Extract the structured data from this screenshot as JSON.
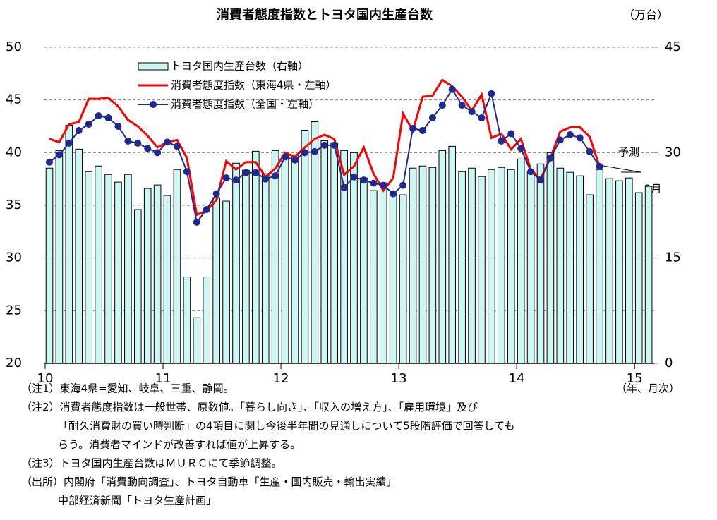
{
  "chart_data": {
    "type": "bar_line",
    "title": "消費者態度指数とトヨタ国内生産台数",
    "y2_unit": "（万台）",
    "x_unit": "（年、月次）",
    "categories": [
      "10",
      null,
      null,
      null,
      null,
      null,
      null,
      null,
      null,
      null,
      null,
      null,
      "11",
      null,
      null,
      null,
      null,
      null,
      null,
      null,
      null,
      null,
      null,
      null,
      "12",
      null,
      null,
      null,
      null,
      null,
      null,
      null,
      null,
      null,
      null,
      null,
      "13",
      null,
      null,
      null,
      null,
      null,
      null,
      null,
      null,
      null,
      null,
      null,
      "14",
      null,
      null,
      null,
      null,
      null,
      null,
      null,
      null,
      null,
      null,
      null,
      "15",
      null
    ],
    "series": [
      {
        "name": "トヨタ国内生産台数（右軸）",
        "kind": "bar",
        "axis": "y2",
        "color": "#ccf7f3",
        "values": [
          27.8,
          30.3,
          33.9,
          30.5,
          27.3,
          28.1,
          26.9,
          25.8,
          26.9,
          21.9,
          24.9,
          25.4,
          23.9,
          27.6,
          12.3,
          6.5,
          12.3,
          23.6,
          23.1,
          28.5,
          27.5,
          30.2,
          27.0,
          30.3,
          29.6,
          29.7,
          33.2,
          34.4,
          31.7,
          31.4,
          30.3,
          30.0,
          26.4,
          24.6,
          25.7,
          24.3,
          24.0,
          27.8,
          28.1,
          27.9,
          30.3,
          30.9,
          27.3,
          27.8,
          26.6,
          27.6,
          27.9,
          27.6,
          29.1,
          27.3,
          28.4,
          30.0,
          27.8,
          27.2,
          26.7,
          24.0,
          27.6,
          26.3,
          26.0,
          26.4,
          24.3,
          25.2
        ]
      },
      {
        "name": "消費者態度指数（東海4県・左軸）",
        "kind": "line",
        "color": "#ff0000",
        "values": [
          41.3,
          41.0,
          42.7,
          42.9,
          45.1,
          45.1,
          45.2,
          44.4,
          43.1,
          42.5,
          41.6,
          40.5,
          41.0,
          41.2,
          39.5,
          34.1,
          34.5,
          35.5,
          39.2,
          38.4,
          39.1,
          39.1,
          37.7,
          38.5,
          40.0,
          39.6,
          40.5,
          41.3,
          41.7,
          41.3,
          37.9,
          38.7,
          40.5,
          38.0,
          36.4,
          37.6,
          43.7,
          42.1,
          45.3,
          45.4,
          46.9,
          46.3,
          45.3,
          44.0,
          45.5,
          41.4,
          41.8,
          40.3,
          41.3,
          38.4,
          37.5,
          39.5,
          42.0,
          42.4,
          42.4,
          41.5,
          38.7,
          null,
          null,
          null,
          null,
          null
        ]
      },
      {
        "name": "消費者態度指数（全国・左軸）",
        "kind": "line_marker",
        "color": "#1f2a8f",
        "values": [
          39.1,
          39.8,
          40.9,
          42.1,
          42.7,
          43.5,
          43.3,
          42.5,
          41.1,
          40.9,
          40.4,
          40.0,
          41.0,
          40.6,
          38.2,
          33.4,
          34.6,
          36.1,
          37.6,
          37.4,
          38.1,
          38.1,
          37.5,
          37.8,
          39.6,
          39.3,
          40.0,
          40.1,
          40.7,
          40.7,
          36.7,
          37.7,
          37.4,
          37.1,
          36.9,
          36.1,
          36.9,
          42.3,
          42.1,
          43.3,
          44.5,
          46.0,
          44.5,
          43.9,
          43.3,
          45.6,
          41.1,
          41.8,
          40.4,
          38.2,
          37.4,
          39.5,
          41.2,
          41.7,
          41.4,
          40.1,
          38.7,
          null,
          null,
          null,
          null,
          null
        ]
      }
    ],
    "ylim": [
      20,
      50
    ],
    "yticks": [
      20,
      25,
      30,
      35,
      40,
      45,
      50
    ],
    "y2lim": [
      0,
      45
    ],
    "y2ticks": [
      0,
      15,
      30,
      45
    ],
    "grid": true,
    "annotations": [
      "予測",
      "2月"
    ]
  },
  "notes": [
    "（注1）東海4県=愛知、岐阜、三重、静岡。",
    "（注2）消費者態度指数は一般世帯、原数値。「暮らし向き」、「収入の増え方」、「雇用環境」及び",
    "「耐久消費財の買い時判断」の4項目に関し今後半年間の見通しについて5段階評価で回答しても",
    "らう。消費者マインドが改善すれば値が上昇する。",
    "（注3）トヨタ国内生産台数はＭＵＲＣにて季節調整。",
    "（出所）内閣府「消費動向調査」、トヨタ自動車「生産・国内販売・輸出実績」",
    "中部経済新聞「トヨタ生産計画」"
  ]
}
